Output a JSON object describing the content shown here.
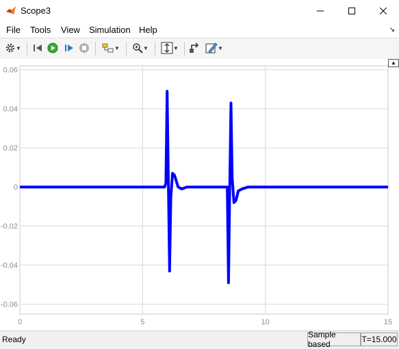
{
  "window": {
    "title": "Scope3",
    "icon": "matlab-icon"
  },
  "menu": {
    "items": [
      "File",
      "Tools",
      "View",
      "Simulation",
      "Help"
    ]
  },
  "toolbar": {
    "icons": [
      "gear-icon",
      "step-back-icon",
      "run-icon",
      "step-forward-icon",
      "stop-icon",
      "signal-select-icon",
      "zoom-in-icon",
      "autoscale-icon",
      "highlight-block-icon",
      "style-icon"
    ]
  },
  "status": {
    "text": "Ready",
    "mode": "Sample based",
    "time": "T=15.000"
  },
  "colors": {
    "trace": "#0000ff",
    "grid": "#d9d9d9",
    "axes_text": "#8c8c8c"
  },
  "chart_data": {
    "type": "line",
    "xlim": [
      0,
      15
    ],
    "ylim": [
      -0.065,
      0.062
    ],
    "x_ticks": [
      0,
      5,
      10,
      15
    ],
    "x_tick_labels": [
      "0",
      "5",
      "10",
      "15"
    ],
    "y_ticks": [
      0.06,
      0.04,
      0.02,
      0,
      -0.02,
      -0.04,
      -0.06
    ],
    "y_tick_labels": [
      "0.06",
      "0.04",
      "0.02",
      "0",
      "-0.02",
      "-0.04",
      "-0.06"
    ],
    "grid": true,
    "series": [
      {
        "x": [
          0,
          5.9,
          5.95,
          6.0,
          6.1,
          6.15,
          6.22,
          6.3,
          6.45,
          6.6,
          6.8,
          8.3,
          8.45,
          8.5,
          8.55,
          8.6,
          8.65,
          8.72,
          8.8,
          8.9,
          9.05,
          9.3,
          15
        ],
        "y": [
          0,
          0,
          0.002,
          0.049,
          -0.043,
          -0.005,
          0.007,
          0.006,
          0.0,
          -0.001,
          0,
          0,
          0.0,
          -0.049,
          0.0,
          0.043,
          0.005,
          -0.008,
          -0.007,
          -0.002,
          -0.001,
          0,
          0
        ]
      }
    ]
  }
}
